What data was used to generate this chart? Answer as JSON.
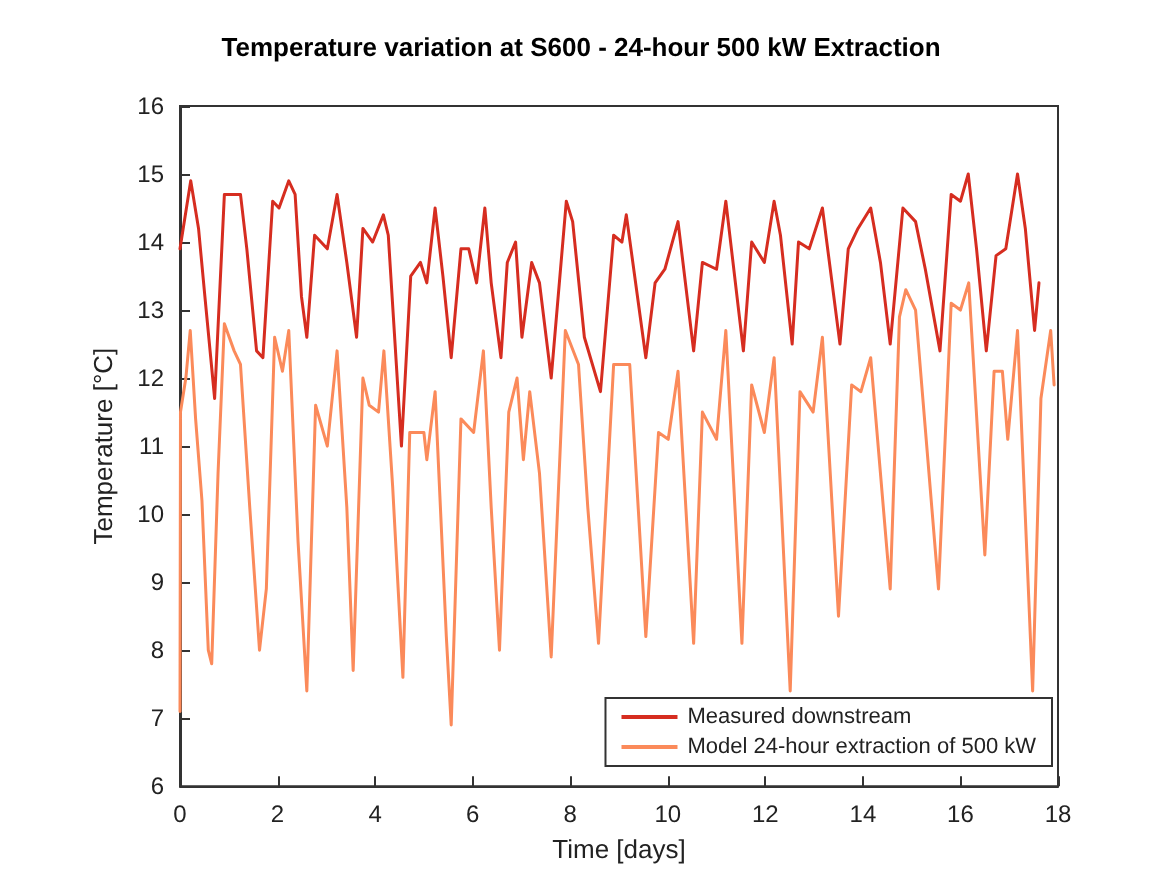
{
  "chart_data": {
    "type": "line",
    "title": "Temperature variation at S600 - 24-hour 500 kW Extraction",
    "xlabel": "Time [days]",
    "ylabel": "Temperature [°C]",
    "xlim": [
      0,
      18
    ],
    "xticks": [
      0,
      2,
      4,
      6,
      8,
      10,
      12,
      14,
      16,
      18
    ],
    "ylim": [
      6,
      16
    ],
    "yticks": [
      6,
      7,
      8,
      9,
      10,
      11,
      12,
      13,
      14,
      15,
      16
    ],
    "grid": false,
    "legend": "bottom right",
    "marker": "none",
    "line_style": "solid",
    "series": [
      {
        "name": "Measured downstream",
        "color": "#d62d20",
        "x": [
          0,
          0.22,
          0.38,
          0.51,
          0.71,
          0.91,
          1.24,
          1.37,
          1.57,
          1.7,
          1.9,
          2.03,
          2.23,
          2.36,
          2.49,
          2.6,
          2.76,
          3.02,
          3.22,
          3.42,
          3.62,
          3.75,
          3.95,
          4.17,
          4.27,
          4.54,
          4.73,
          4.93,
          5.06,
          5.23,
          5.39,
          5.56,
          5.76,
          5.92,
          6.08,
          6.25,
          6.38,
          6.58,
          6.71,
          6.88,
          7.01,
          7.21,
          7.37,
          7.61,
          7.92,
          8.05,
          8.29,
          8.62,
          8.89,
          9.06,
          9.15,
          9.55,
          9.74,
          9.94,
          10.21,
          10.53,
          10.71,
          11.0,
          11.19,
          11.55,
          11.72,
          11.98,
          12.18,
          12.31,
          12.55,
          12.68,
          12.9,
          13.17,
          13.53,
          13.7,
          13.9,
          14.16,
          14.36,
          14.56,
          14.82,
          15.08,
          15.28,
          15.58,
          15.81,
          16.0,
          16.16,
          16.33,
          16.53,
          16.73,
          16.93,
          17.17,
          17.33,
          17.52,
          17.61
        ],
        "values": [
          13.9,
          14.9,
          14.2,
          13.2,
          11.7,
          14.7,
          14.7,
          13.9,
          12.4,
          12.3,
          14.6,
          14.5,
          14.9,
          14.7,
          13.2,
          12.6,
          14.1,
          13.9,
          14.7,
          13.7,
          12.6,
          14.2,
          14.0,
          14.4,
          14.1,
          11.0,
          13.5,
          13.7,
          13.4,
          14.5,
          13.5,
          12.3,
          13.9,
          13.9,
          13.4,
          14.5,
          13.4,
          12.3,
          13.7,
          14.0,
          12.6,
          13.7,
          13.4,
          12.0,
          14.6,
          14.3,
          12.6,
          11.8,
          14.1,
          14.0,
          14.4,
          12.3,
          13.4,
          13.6,
          14.3,
          12.4,
          13.7,
          13.6,
          14.6,
          12.4,
          14.0,
          13.7,
          14.6,
          14.1,
          12.5,
          14.0,
          13.9,
          14.5,
          12.5,
          13.9,
          14.2,
          14.5,
          13.7,
          12.5,
          14.5,
          14.3,
          13.6,
          12.4,
          14.7,
          14.6,
          15.0,
          13.9,
          12.4,
          13.8,
          13.9,
          15.0,
          14.2,
          12.7,
          13.4
        ]
      },
      {
        "name": "Model 24-hour extraction of 500 kW",
        "color": "#fb8a5a",
        "x": [
          0,
          0.01,
          0.12,
          0.21,
          0.32,
          0.45,
          0.58,
          0.65,
          0.78,
          0.91,
          1.11,
          1.24,
          1.43,
          1.63,
          1.77,
          1.94,
          2.1,
          2.23,
          2.42,
          2.6,
          2.78,
          3.02,
          3.22,
          3.42,
          3.55,
          3.75,
          3.88,
          4.07,
          4.18,
          4.36,
          4.57,
          4.71,
          5.0,
          5.06,
          5.23,
          5.46,
          5.56,
          5.76,
          6.02,
          6.22,
          6.38,
          6.55,
          6.74,
          6.91,
          7.04,
          7.17,
          7.37,
          7.61,
          7.9,
          8.17,
          8.36,
          8.58,
          8.89,
          9.22,
          9.55,
          9.81,
          10.01,
          10.21,
          10.53,
          10.71,
          11.0,
          11.19,
          11.52,
          11.72,
          11.98,
          12.18,
          12.51,
          12.71,
          12.98,
          13.17,
          13.5,
          13.77,
          13.96,
          14.16,
          14.56,
          14.75,
          14.88,
          15.08,
          15.55,
          15.81,
          16.0,
          16.17,
          16.5,
          16.69,
          16.86,
          16.97,
          17.17,
          17.48,
          17.65,
          17.85,
          17.92
        ],
        "values": [
          7.1,
          11.5,
          12.0,
          12.7,
          11.4,
          10.2,
          8.0,
          7.8,
          10.6,
          12.8,
          12.4,
          12.2,
          10.1,
          8.0,
          8.9,
          12.6,
          12.1,
          12.7,
          9.6,
          7.4,
          11.6,
          11.0,
          12.4,
          10.1,
          7.7,
          12.0,
          11.6,
          11.5,
          12.4,
          10.4,
          7.6,
          11.2,
          11.2,
          10.8,
          11.8,
          8.2,
          6.9,
          11.4,
          11.2,
          12.4,
          10.1,
          8.0,
          11.5,
          12.0,
          10.8,
          11.8,
          10.6,
          7.9,
          12.7,
          12.2,
          10.1,
          8.1,
          12.2,
          12.2,
          8.2,
          11.2,
          11.1,
          12.1,
          8.1,
          11.5,
          11.1,
          12.7,
          8.1,
          11.9,
          11.2,
          12.3,
          7.4,
          11.8,
          11.5,
          12.6,
          8.5,
          11.9,
          11.8,
          12.3,
          8.9,
          12.9,
          13.3,
          13.0,
          8.9,
          13.1,
          13.0,
          13.4,
          9.4,
          12.1,
          12.1,
          11.1,
          12.7,
          7.4,
          11.7,
          12.7,
          11.9
        ]
      }
    ]
  }
}
